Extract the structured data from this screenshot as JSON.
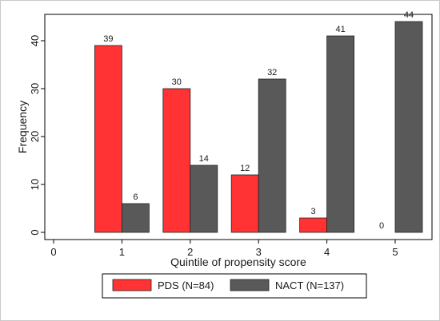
{
  "chart_data": {
    "type": "bar",
    "xlabel": "Quintile of propensity score",
    "ylabel": "Frequency",
    "x_ticks": [
      "0",
      "1",
      "2",
      "3",
      "4",
      "5"
    ],
    "y_ticks": [
      "0",
      "10",
      "20",
      "30",
      "40"
    ],
    "xlim": [
      0,
      5.55
    ],
    "ylim": [
      0,
      45.5
    ],
    "categories": [
      1,
      2,
      3,
      4,
      5
    ],
    "series": [
      {
        "name": "PDS (N=84)",
        "color": "#ff3333",
        "values": [
          39,
          30,
          12,
          3,
          0
        ]
      },
      {
        "name": "NACT (N=137)",
        "color": "#595959",
        "values": [
          6,
          14,
          32,
          41,
          44
        ]
      }
    ],
    "grid": false,
    "legend_position": "bottom"
  }
}
